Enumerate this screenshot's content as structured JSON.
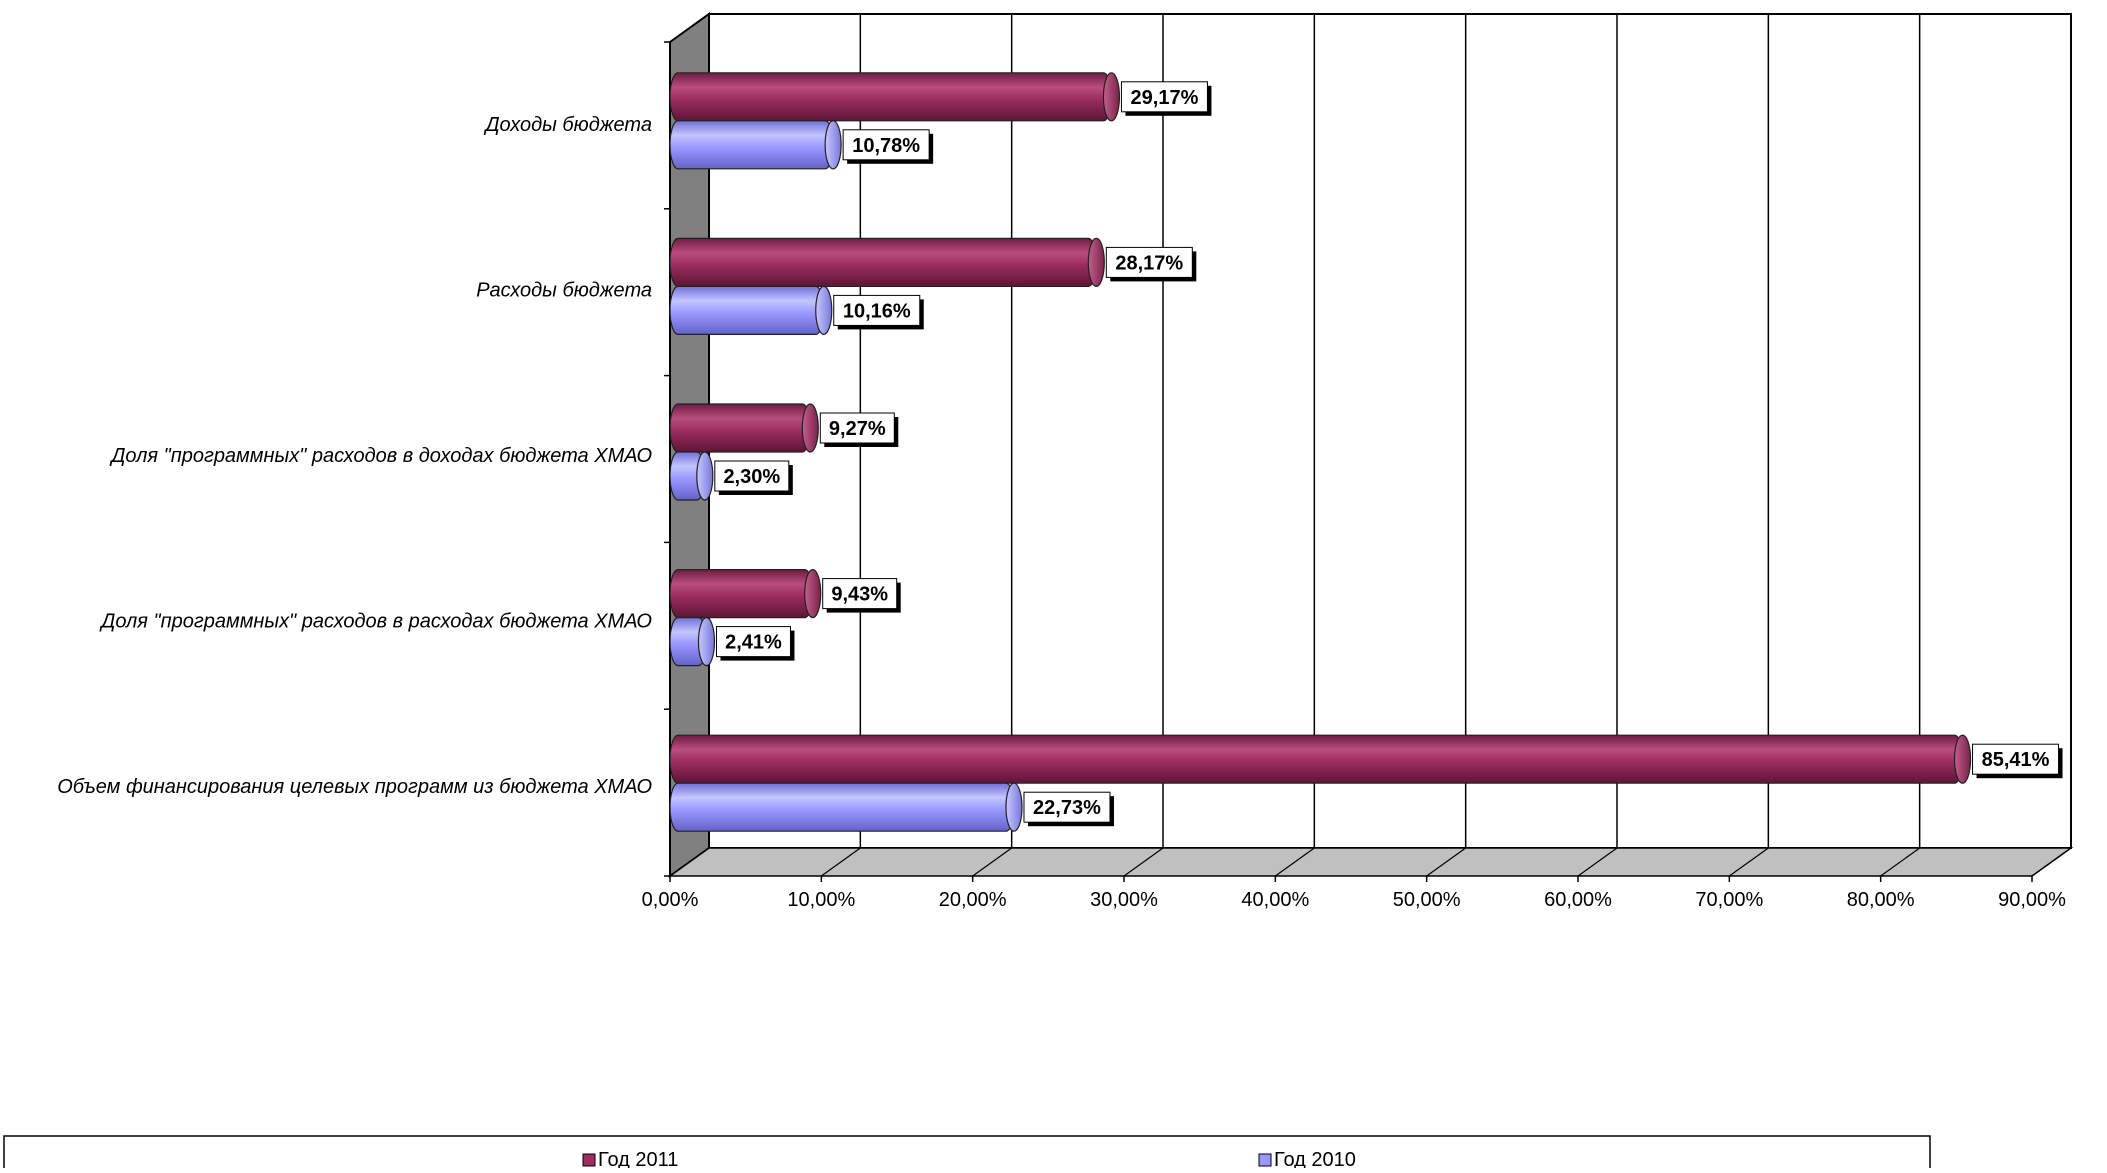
{
  "chart_data": {
    "type": "bar",
    "orientation": "horizontal",
    "style": "3d-cylinder",
    "categories": [
      "Доходы бюджета",
      "Расходы бюджета",
      "Доля \"программных\" расходов в доходах бюджета ХМАО",
      "Доля \"программных\" расходов в расходах бюджета ХМАО",
      "Объем финансирования целевых программ из бюджета ХМАО"
    ],
    "series": [
      {
        "name": "Год 2011",
        "color": "#9B2D5F",
        "values": [
          29.17,
          28.17,
          9.27,
          9.43,
          85.41
        ],
        "labels": [
          "29,17%",
          "28,17%",
          "9,27%",
          "9,43%",
          "85,41%"
        ]
      },
      {
        "name": "Год 2010",
        "color": "#9999FF",
        "values": [
          10.78,
          10.16,
          2.3,
          2.41,
          22.73
        ],
        "labels": [
          "10,78%",
          "10,16%",
          "2,30%",
          "2,41%",
          "22,73%"
        ]
      }
    ],
    "xlim": [
      0,
      90
    ],
    "ticks": [
      0,
      10,
      20,
      30,
      40,
      50,
      60,
      70,
      80,
      90
    ],
    "tick_labels": [
      "0,00%",
      "10,00%",
      "20,00%",
      "30,00%",
      "40,00%",
      "50,00%",
      "60,00%",
      "70,00%",
      "80,00%",
      "90,00%"
    ],
    "grid": true,
    "legend_position": "bottom",
    "title": "",
    "xlabel": "",
    "ylabel": ""
  }
}
